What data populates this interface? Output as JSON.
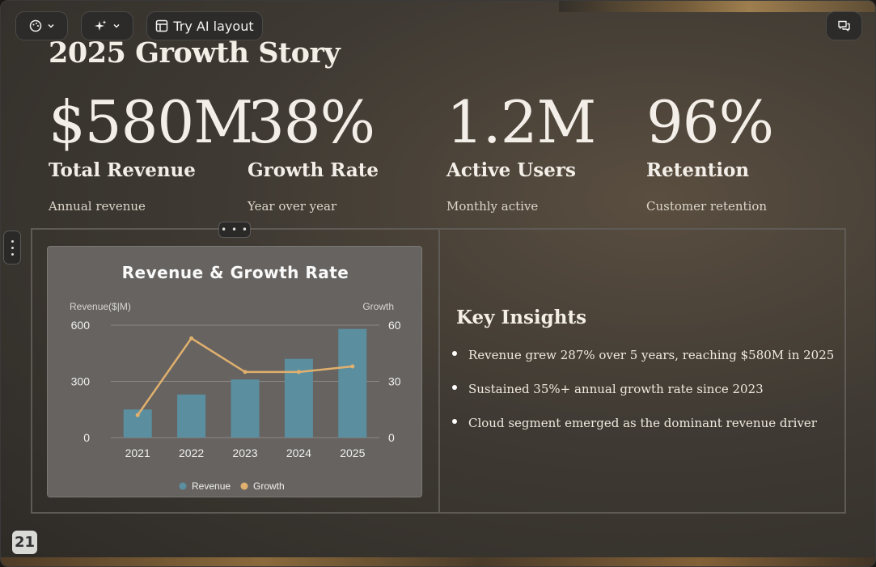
{
  "toolbar": {
    "theme_icon": "palette-icon",
    "ai_icon": "sparkles-icon",
    "ai_layout_label": "Try AI layout",
    "comments_icon": "chat-bubbles-icon"
  },
  "slide": {
    "title": "2025 Growth Story",
    "metrics": [
      {
        "value": "$580M",
        "label": "Total Revenue",
        "sub": "Annual revenue"
      },
      {
        "value": "38%",
        "label": "Growth Rate",
        "sub": "Year over year"
      },
      {
        "value": "1.2M",
        "label": "Active Users",
        "sub": "Monthly active"
      },
      {
        "value": "96%",
        "label": "Retention",
        "sub": "Customer retention"
      }
    ],
    "insights": {
      "title": "Key Insights",
      "items": [
        "Revenue grew 287% over 5 years, reaching $580M in 2025",
        "Sustained 35%+ annual growth rate since 2023",
        "Cloud segment emerged as the dominant revenue driver"
      ]
    },
    "page_number": "21",
    "colors": {
      "bar": "#5b8fa0",
      "line": "#e0b06e"
    }
  },
  "chart_data": {
    "type": "bar",
    "title": "Revenue & Growth Rate",
    "categories": [
      "2021",
      "2022",
      "2023",
      "2024",
      "2025"
    ],
    "ylabel": "Revenue($|M)",
    "y2label": "Growth",
    "ylim": [
      0,
      600
    ],
    "y2lim": [
      0,
      60
    ],
    "yticks": [
      "0",
      "300",
      "600"
    ],
    "y2ticks": [
      "0",
      "30",
      "60"
    ],
    "series": [
      {
        "name": "Revenue",
        "type": "bar",
        "axis": "left",
        "values": [
          150,
          230,
          310,
          420,
          580
        ]
      },
      {
        "name": "Growth",
        "type": "line",
        "axis": "right",
        "values": [
          12,
          53,
          35,
          35,
          38
        ]
      }
    ],
    "legend": "bottom-center",
    "grid": true
  }
}
